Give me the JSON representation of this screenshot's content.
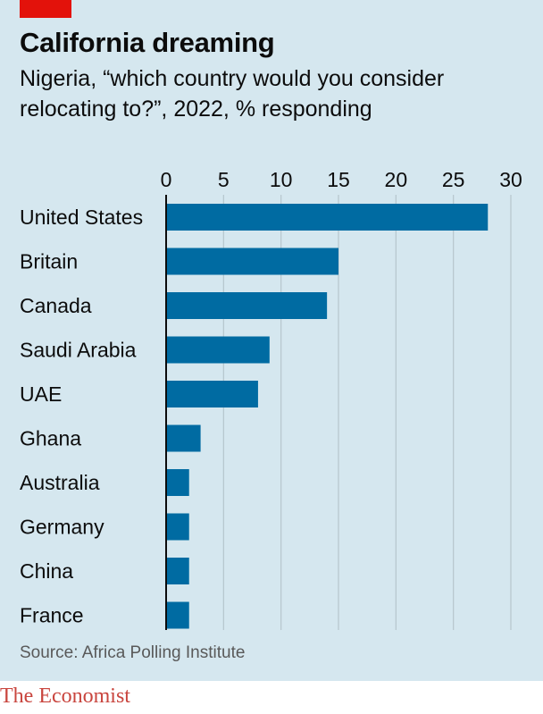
{
  "header": {
    "title": "California dreaming",
    "subtitle_line1": "Nigeria, “which country would you consider",
    "subtitle_line2": "relocating to?”, 2022, % responding"
  },
  "footer": {
    "source": "Source: Africa Polling Institute",
    "brand": "The Economist"
  },
  "colors": {
    "background": "#d5e7ef",
    "bar": "#006ba2",
    "accent_red": "#e3120b",
    "gridline": "#b7c6cd"
  },
  "chart_data": {
    "type": "bar",
    "orientation": "horizontal",
    "categories": [
      "United States",
      "Britain",
      "Canada",
      "Saudi Arabia",
      "UAE",
      "Ghana",
      "Australia",
      "Germany",
      "China",
      "France"
    ],
    "values": [
      28,
      15,
      14,
      9,
      8,
      3,
      2,
      2,
      2,
      2
    ],
    "xlim": [
      0,
      30
    ],
    "x_ticks": [
      "0",
      "5",
      "10",
      "15",
      "20",
      "25",
      "30"
    ],
    "x_tick_values": [
      0,
      5,
      10,
      15,
      20,
      25,
      30
    ],
    "axis_position": "top",
    "grid": true
  }
}
